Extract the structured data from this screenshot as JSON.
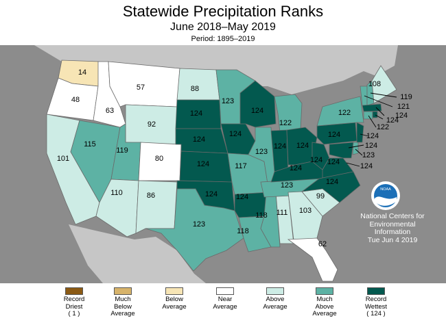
{
  "header": {
    "title": "Statewide Precipitation Ranks",
    "subtitle": "June 2018–May 2019",
    "period": "Period: 1895–2019"
  },
  "colors": {
    "background": "#8c8c8c",
    "land_outside": "#c6c6c6",
    "record_driest": "#8b5a14",
    "much_below": "#d7b36a",
    "below": "#f7e5b5",
    "near": "#ffffff",
    "above": "#cdece5",
    "much_above": "#5db2a4",
    "record_wettest": "#03594f"
  },
  "states": [
    {
      "id": "WA",
      "rank": "14",
      "category": "below"
    },
    {
      "id": "OR",
      "rank": "48",
      "category": "near"
    },
    {
      "id": "ID",
      "rank": "63",
      "category": "near"
    },
    {
      "id": "MT",
      "rank": "57",
      "category": "near"
    },
    {
      "id": "WY",
      "rank": "92",
      "category": "above"
    },
    {
      "id": "CA",
      "rank": "101",
      "category": "above"
    },
    {
      "id": "NV",
      "rank": "115",
      "category": "much_above"
    },
    {
      "id": "UT",
      "rank": "119",
      "category": "much_above"
    },
    {
      "id": "CO",
      "rank": "80",
      "category": "near"
    },
    {
      "id": "AZ",
      "rank": "110",
      "category": "above"
    },
    {
      "id": "NM",
      "rank": "86",
      "category": "above"
    },
    {
      "id": "ND",
      "rank": "88",
      "category": "above"
    },
    {
      "id": "SD",
      "rank": "124",
      "category": "record_wettest"
    },
    {
      "id": "NE",
      "rank": "124",
      "category": "record_wettest"
    },
    {
      "id": "KS",
      "rank": "124",
      "category": "record_wettest"
    },
    {
      "id": "OK",
      "rank": "124",
      "category": "record_wettest"
    },
    {
      "id": "TX",
      "rank": "123",
      "category": "much_above"
    },
    {
      "id": "MN",
      "rank": "123",
      "category": "much_above"
    },
    {
      "id": "IA",
      "rank": "124",
      "category": "record_wettest"
    },
    {
      "id": "MO",
      "rank": "117",
      "category": "much_above"
    },
    {
      "id": "AR",
      "rank": "124",
      "category": "record_wettest"
    },
    {
      "id": "LA",
      "rank": "118",
      "category": "much_above"
    },
    {
      "id": "WI",
      "rank": "124",
      "category": "record_wettest"
    },
    {
      "id": "IL",
      "rank": "123",
      "category": "much_above"
    },
    {
      "id": "MI",
      "rank": "122",
      "category": "much_above"
    },
    {
      "id": "IN",
      "rank": "124",
      "category": "record_wettest"
    },
    {
      "id": "OH",
      "rank": "124",
      "category": "record_wettest"
    },
    {
      "id": "KY",
      "rank": "124",
      "category": "record_wettest"
    },
    {
      "id": "TN",
      "rank": "123",
      "category": "much_above"
    },
    {
      "id": "MS",
      "rank": "118",
      "category": "much_above"
    },
    {
      "id": "AL",
      "rank": "111",
      "category": "above"
    },
    {
      "id": "GA",
      "rank": "103",
      "category": "above"
    },
    {
      "id": "FL",
      "rank": "62",
      "category": "near"
    },
    {
      "id": "SC",
      "rank": "99",
      "category": "above"
    },
    {
      "id": "NC",
      "rank": "124",
      "category": "record_wettest"
    },
    {
      "id": "VA",
      "rank": "124",
      "category": "record_wettest"
    },
    {
      "id": "WV",
      "rank": "124",
      "category": "record_wettest"
    },
    {
      "id": "PA",
      "rank": "124",
      "category": "record_wettest"
    },
    {
      "id": "NY",
      "rank": "122",
      "category": "much_above"
    },
    {
      "id": "ME",
      "rank": "108",
      "category": "above"
    },
    {
      "id": "NH",
      "rank": "119",
      "category": "much_above"
    },
    {
      "id": "VT",
      "rank": "121",
      "category": "much_above"
    },
    {
      "id": "MA",
      "rank": "124",
      "category": "record_wettest"
    },
    {
      "id": "CT",
      "rank": "122",
      "category": "much_above"
    },
    {
      "id": "RI",
      "rank": "124",
      "category": "record_wettest"
    },
    {
      "id": "NJ",
      "rank": "124",
      "category": "record_wettest"
    },
    {
      "id": "DE",
      "rank": "123",
      "category": "much_above"
    },
    {
      "id": "MD",
      "rank": "124",
      "category": "record_wettest"
    }
  ],
  "noaa": {
    "logo_text": "NOAA",
    "line1": "National Centers for",
    "line2": "Environmental",
    "line3": "Information",
    "line4": "Tue Jun  4 2019"
  },
  "legend": [
    {
      "key": "record_driest",
      "lines": [
        "Record",
        "Driest",
        "( 1 )"
      ]
    },
    {
      "key": "much_below",
      "lines": [
        "Much",
        "Below",
        "Average"
      ]
    },
    {
      "key": "below",
      "lines": [
        "Below",
        "Average"
      ]
    },
    {
      "key": "near",
      "lines": [
        "Near",
        "Average"
      ]
    },
    {
      "key": "above",
      "lines": [
        "Above",
        "Average"
      ]
    },
    {
      "key": "much_above",
      "lines": [
        "Much",
        "Above",
        "Average"
      ]
    },
    {
      "key": "record_wettest",
      "lines": [
        "Record",
        "Wettest",
        "( 124 )"
      ]
    }
  ]
}
